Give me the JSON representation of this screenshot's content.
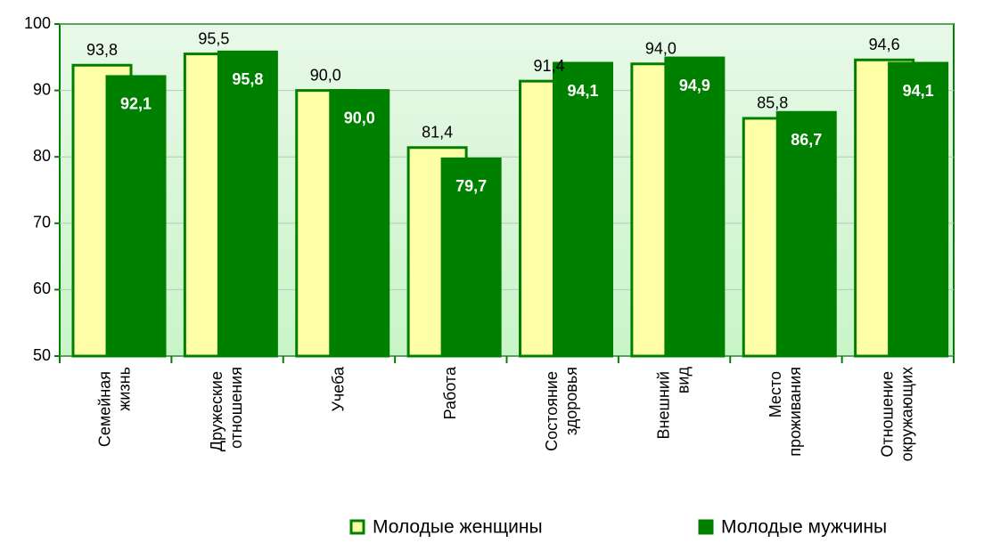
{
  "chart_data": {
    "type": "bar",
    "categories": [
      "Семейная жизнь",
      "Дружеские отношения",
      "Учеба",
      "Работа",
      "Состояние здоровья",
      "Внешний вид",
      "Место проживания",
      "Отношение окружающих"
    ],
    "series": [
      {
        "name": "Молодые женщины",
        "color": "#ffffa8",
        "values": [
          93.8,
          95.5,
          90.0,
          81.4,
          91.4,
          94.0,
          85.8,
          94.6
        ],
        "value_labels": [
          "93,8",
          "95,5",
          "90,0",
          "81,4",
          "91,4",
          "94,0",
          "85,8",
          "94,6"
        ]
      },
      {
        "name": "Молодые мужчины",
        "color": "#008000",
        "values": [
          92.1,
          95.8,
          90.0,
          79.7,
          94.1,
          94.9,
          86.7,
          94.1
        ],
        "value_labels": [
          "92,1",
          "95,8",
          "90,0",
          "79,7",
          "94,1",
          "94,9",
          "86,7",
          "94,1"
        ]
      }
    ],
    "ylim": [
      50,
      100
    ],
    "yticks": [
      50,
      60,
      70,
      80,
      90,
      100
    ],
    "grid": true,
    "legend": "bottom"
  }
}
